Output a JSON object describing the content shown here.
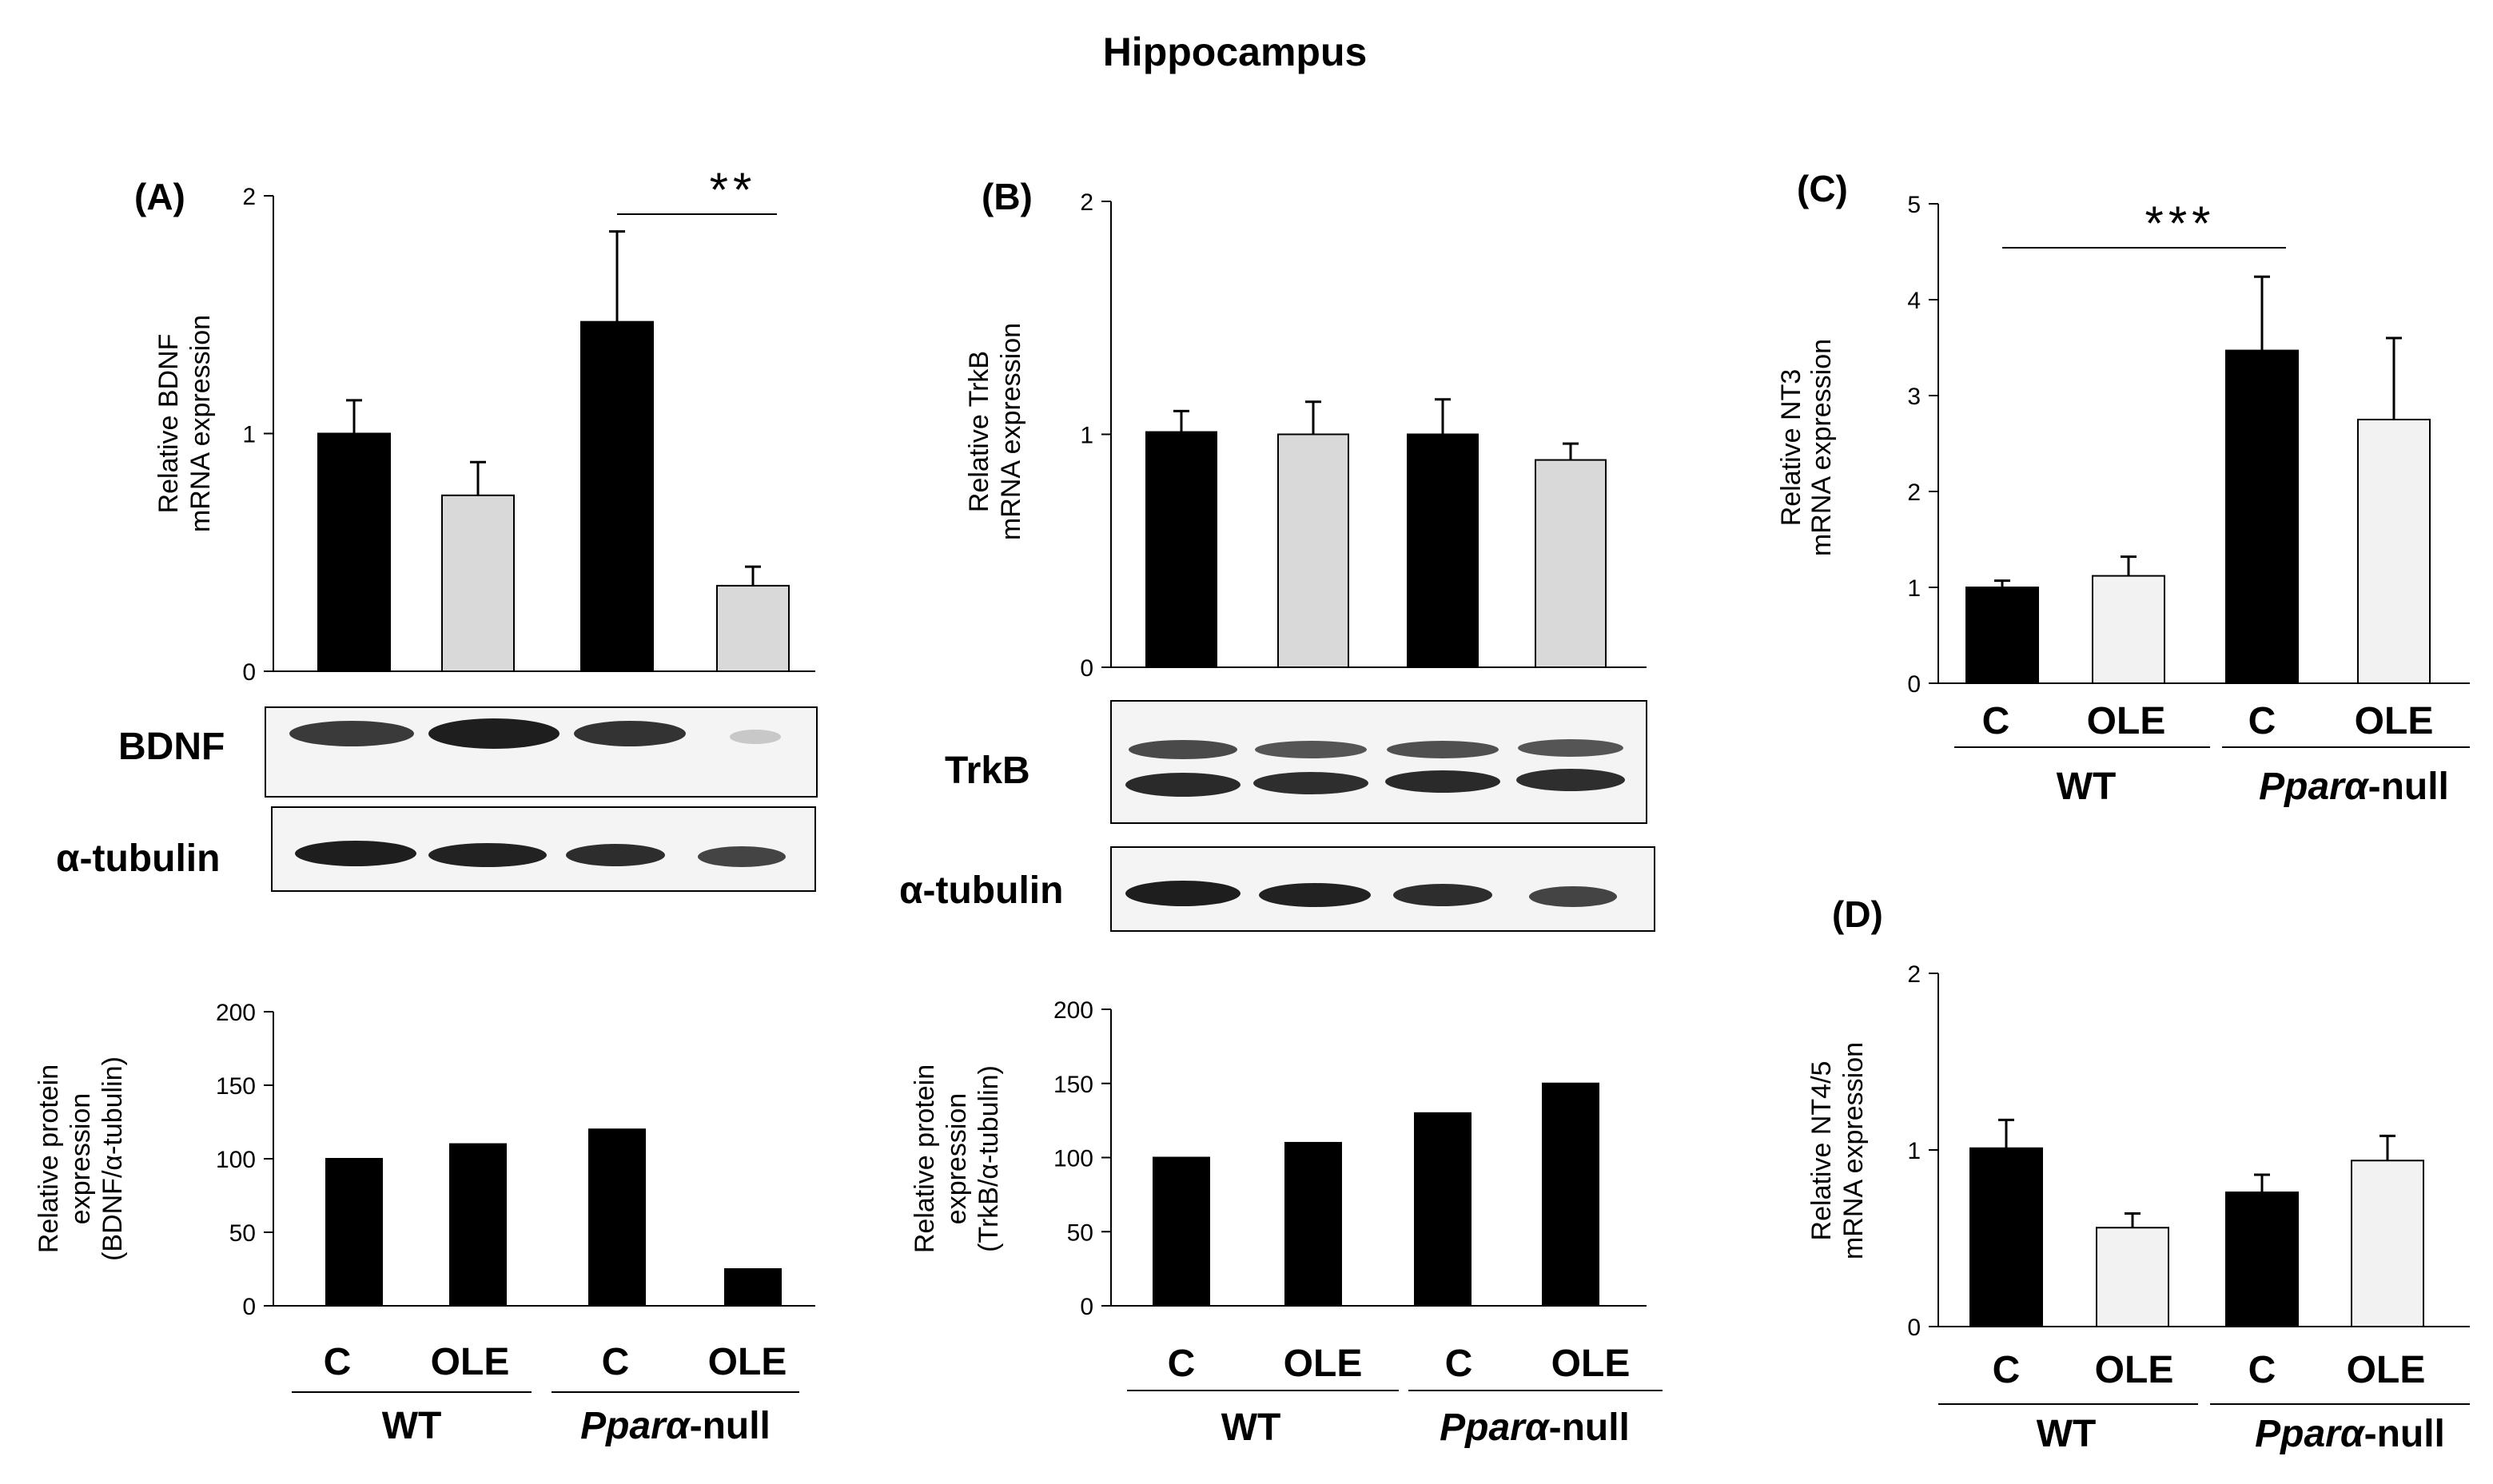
{
  "figure_title": "Hippocampus",
  "panels": {
    "A": "(A)",
    "B": "(B)",
    "C": "(C)",
    "D": "(D)"
  },
  "group_labels": {
    "wt": "WT",
    "null_italic": "Pparα",
    "null_suffix": "-null"
  },
  "category_labels": [
    "C",
    "OLE",
    "C",
    "OLE"
  ],
  "blot_labels": {
    "bdnf": "BDNF",
    "trkb": "TrkB",
    "tubulin_a": "α-tubulin",
    "tubulin_b": "α-tubulin"
  },
  "colors": {
    "black_bar": "#000000",
    "grey_bar": "#d9d9d9",
    "light_bar": "#f2f2f2"
  },
  "chart_data": [
    {
      "id": "A-mrna",
      "type": "bar",
      "panel": "(A)",
      "categories": [
        "C",
        "OLE",
        "C",
        "OLE"
      ],
      "groups": [
        "WT",
        "WT",
        "Pparα-null",
        "Pparα-null"
      ],
      "values": [
        1.0,
        0.74,
        1.47,
        0.36
      ],
      "errors": [
        0.14,
        0.14,
        0.38,
        0.08
      ],
      "bar_colors": [
        "#000000",
        "#d9d9d9",
        "#000000",
        "#d9d9d9"
      ],
      "ylabel": [
        "Relative BDNF",
        "mRNA expression"
      ],
      "ylim": [
        0,
        2
      ],
      "yticks": [
        "0",
        "1",
        "2"
      ],
      "significance": {
        "label": "**",
        "between": [
          2,
          3
        ]
      }
    },
    {
      "id": "A-protein",
      "type": "bar",
      "panel": "(A)",
      "categories": [
        "C",
        "OLE",
        "C",
        "OLE"
      ],
      "values": [
        100,
        110,
        120,
        25
      ],
      "bar_colors": [
        "#000000",
        "#000000",
        "#000000",
        "#000000"
      ],
      "ylabel": [
        "Relative protein",
        "expression",
        "(BDNF/α-tubulin)"
      ],
      "ylim": [
        0,
        200
      ],
      "yticks": [
        "0",
        "50",
        "100",
        "150",
        "200"
      ]
    },
    {
      "id": "B-mrna",
      "type": "bar",
      "panel": "(B)",
      "categories": [
        "C",
        "OLE",
        "C",
        "OLE"
      ],
      "values": [
        1.01,
        1.0,
        1.0,
        0.89
      ],
      "errors": [
        0.09,
        0.14,
        0.15,
        0.07
      ],
      "bar_colors": [
        "#000000",
        "#d9d9d9",
        "#000000",
        "#d9d9d9"
      ],
      "ylabel": [
        "Relative TrkB",
        "mRNA expression"
      ],
      "ylim": [
        0,
        2
      ],
      "yticks": [
        "0",
        "1",
        "2"
      ]
    },
    {
      "id": "B-protein",
      "type": "bar",
      "panel": "(B)",
      "categories": [
        "C",
        "OLE",
        "C",
        "OLE"
      ],
      "values": [
        100,
        110,
        130,
        150
      ],
      "bar_colors": [
        "#000000",
        "#000000",
        "#000000",
        "#000000"
      ],
      "ylabel": [
        "Relative protein",
        "expression",
        "(TrkB/α-tubulin)"
      ],
      "ylim": [
        0,
        200
      ],
      "yticks": [
        "0",
        "50",
        "100",
        "150",
        "200"
      ]
    },
    {
      "id": "C-mrna",
      "type": "bar",
      "panel": "(C)",
      "categories": [
        "C",
        "OLE",
        "C",
        "OLE"
      ],
      "values": [
        1.0,
        1.12,
        3.47,
        2.75
      ],
      "errors": [
        0.07,
        0.2,
        0.77,
        0.85
      ],
      "bar_colors": [
        "#000000",
        "#f2f2f2",
        "#000000",
        "#f2f2f2"
      ],
      "ylabel": [
        "Relative NT3",
        "mRNA expression"
      ],
      "ylim": [
        0,
        5
      ],
      "yticks": [
        "0",
        "1",
        "2",
        "3",
        "4",
        "5"
      ],
      "significance": {
        "label": "***",
        "between": [
          0,
          2
        ]
      }
    },
    {
      "id": "D-mrna",
      "type": "bar",
      "panel": "(D)",
      "categories": [
        "C",
        "OLE",
        "C",
        "OLE"
      ],
      "values": [
        1.01,
        0.56,
        0.76,
        0.94
      ],
      "errors": [
        0.16,
        0.08,
        0.1,
        0.14
      ],
      "bar_colors": [
        "#000000",
        "#f2f2f2",
        "#000000",
        "#f2f2f2"
      ],
      "ylabel": [
        "Relative NT4/5",
        "mRNA expression"
      ],
      "ylim": [
        0,
        2
      ],
      "yticks": [
        "0",
        "1",
        "2"
      ]
    }
  ]
}
